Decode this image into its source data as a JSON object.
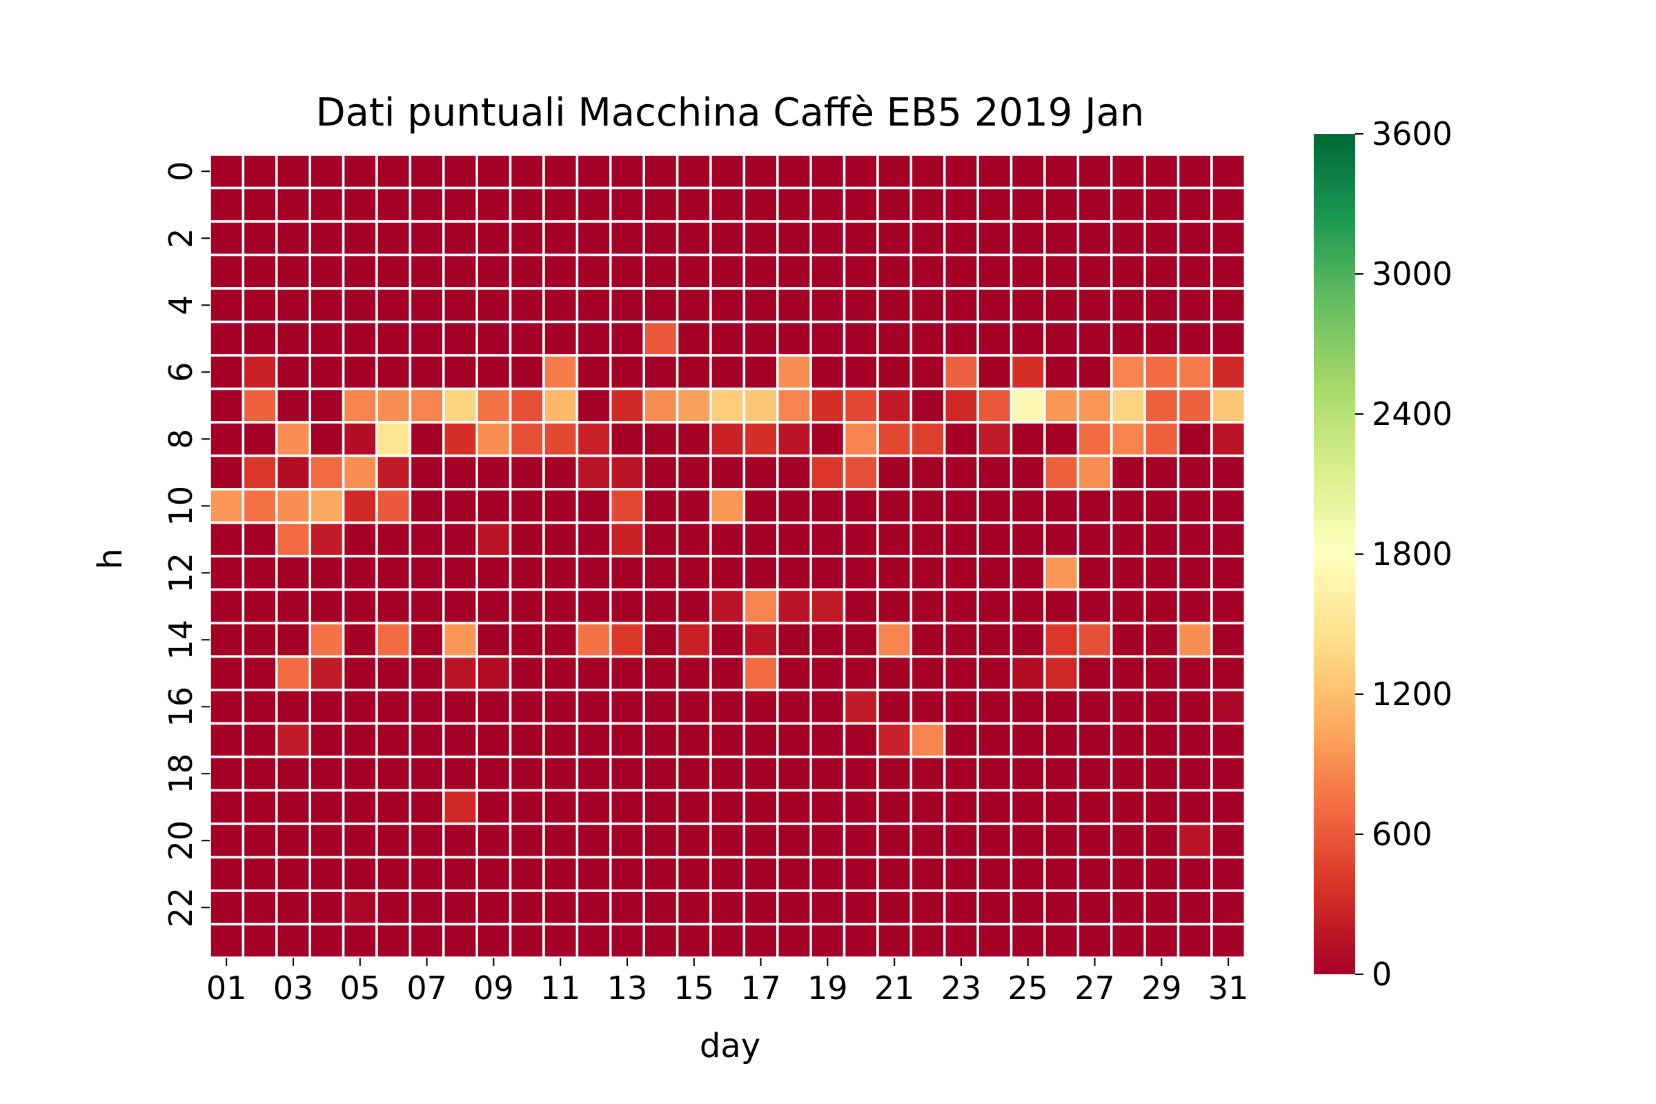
{
  "chart_data": {
    "type": "heatmap",
    "title": "Dati puntuali Macchina Caffè EB5 2019 Jan",
    "xlabel": "day",
    "ylabel": "h",
    "x_categories": [
      "01",
      "02",
      "03",
      "04",
      "05",
      "06",
      "07",
      "08",
      "09",
      "10",
      "11",
      "12",
      "13",
      "14",
      "15",
      "16",
      "17",
      "18",
      "19",
      "20",
      "21",
      "22",
      "23",
      "24",
      "25",
      "26",
      "27",
      "28",
      "29",
      "30",
      "31"
    ],
    "x_tick_labels": [
      "01",
      "03",
      "05",
      "07",
      "09",
      "11",
      "13",
      "15",
      "17",
      "19",
      "21",
      "23",
      "25",
      "27",
      "29",
      "31"
    ],
    "y_categories": [
      "0",
      "1",
      "2",
      "3",
      "4",
      "5",
      "6",
      "7",
      "8",
      "9",
      "10",
      "11",
      "12",
      "13",
      "14",
      "15",
      "16",
      "17",
      "18",
      "19",
      "20",
      "21",
      "22",
      "23"
    ],
    "y_tick_labels": [
      "0",
      "2",
      "4",
      "6",
      "8",
      "10",
      "12",
      "14",
      "16",
      "18",
      "20",
      "22"
    ],
    "colorbar": {
      "min": 0,
      "max": 3600,
      "ticks": [
        "0",
        "600",
        "1200",
        "1800",
        "2400",
        "3000",
        "3600"
      ],
      "colormap": "RdYlGn",
      "stops": [
        "#a50026",
        "#d73027",
        "#f46d43",
        "#fdae61",
        "#fee08b",
        "#ffffbf",
        "#d9ef8b",
        "#a6d96a",
        "#66bd63",
        "#1a9850",
        "#006837"
      ]
    },
    "values": [
      [
        0,
        0,
        0,
        0,
        0,
        0,
        0,
        0,
        0,
        0,
        0,
        0,
        0,
        0,
        0,
        0,
        0,
        0,
        0,
        0,
        0,
        0,
        0,
        0,
        0,
        0,
        0,
        0,
        0,
        0,
        0
      ],
      [
        0,
        0,
        0,
        0,
        0,
        0,
        0,
        0,
        0,
        0,
        0,
        0,
        0,
        0,
        0,
        0,
        0,
        0,
        0,
        0,
        0,
        0,
        0,
        0,
        0,
        0,
        0,
        0,
        0,
        0,
        0
      ],
      [
        0,
        0,
        0,
        0,
        0,
        0,
        0,
        0,
        0,
        0,
        0,
        0,
        0,
        0,
        0,
        0,
        0,
        0,
        0,
        0,
        0,
        0,
        0,
        0,
        0,
        0,
        0,
        0,
        0,
        0,
        0
      ],
      [
        0,
        0,
        0,
        0,
        0,
        0,
        0,
        0,
        0,
        0,
        0,
        0,
        0,
        0,
        0,
        0,
        0,
        0,
        0,
        0,
        0,
        0,
        0,
        0,
        0,
        0,
        0,
        0,
        0,
        0,
        0
      ],
      [
        0,
        0,
        0,
        0,
        0,
        0,
        0,
        0,
        0,
        0,
        0,
        0,
        0,
        0,
        0,
        0,
        0,
        0,
        0,
        0,
        0,
        0,
        0,
        0,
        0,
        0,
        0,
        0,
        0,
        0,
        0
      ],
      [
        0,
        0,
        0,
        0,
        0,
        0,
        0,
        0,
        0,
        0,
        0,
        0,
        0,
        600,
        0,
        0,
        0,
        0,
        0,
        0,
        0,
        0,
        0,
        0,
        0,
        0,
        0,
        0,
        0,
        0,
        0
      ],
      [
        0,
        250,
        0,
        0,
        0,
        0,
        0,
        0,
        0,
        0,
        800,
        0,
        0,
        0,
        0,
        0,
        0,
        900,
        0,
        0,
        0,
        0,
        650,
        0,
        350,
        0,
        0,
        850,
        700,
        800,
        300
      ],
      [
        0,
        650,
        0,
        0,
        850,
        900,
        850,
        1350,
        750,
        550,
        1150,
        0,
        300,
        900,
        1000,
        1300,
        1250,
        850,
        350,
        500,
        200,
        0,
        300,
        600,
        1700,
        950,
        950,
        1350,
        650,
        650,
        1250
      ],
      [
        0,
        0,
        900,
        0,
        100,
        1500,
        0,
        350,
        900,
        550,
        500,
        250,
        0,
        0,
        0,
        250,
        350,
        150,
        0,
        850,
        500,
        450,
        0,
        200,
        0,
        0,
        700,
        850,
        650,
        0,
        150
      ],
      [
        0,
        400,
        100,
        700,
        900,
        200,
        0,
        0,
        0,
        0,
        0,
        150,
        150,
        0,
        0,
        0,
        0,
        0,
        400,
        550,
        0,
        0,
        0,
        0,
        0,
        650,
        900,
        0,
        0,
        0,
        0
      ],
      [
        950,
        750,
        900,
        1050,
        300,
        600,
        0,
        0,
        0,
        0,
        0,
        0,
        500,
        0,
        0,
        950,
        0,
        0,
        0,
        0,
        0,
        0,
        0,
        0,
        0,
        0,
        0,
        0,
        0,
        0,
        0
      ],
      [
        0,
        0,
        700,
        200,
        0,
        0,
        0,
        0,
        150,
        0,
        0,
        0,
        250,
        0,
        0,
        0,
        0,
        0,
        0,
        0,
        0,
        0,
        0,
        0,
        0,
        0,
        0,
        0,
        0,
        0,
        0
      ],
      [
        0,
        0,
        0,
        0,
        0,
        0,
        0,
        0,
        0,
        0,
        0,
        0,
        0,
        0,
        0,
        0,
        0,
        0,
        0,
        0,
        0,
        0,
        0,
        0,
        0,
        950,
        0,
        0,
        0,
        0,
        0
      ],
      [
        0,
        0,
        0,
        0,
        0,
        0,
        0,
        0,
        0,
        0,
        0,
        0,
        0,
        0,
        0,
        150,
        850,
        150,
        200,
        0,
        0,
        0,
        0,
        0,
        0,
        0,
        0,
        0,
        0,
        0,
        0
      ],
      [
        0,
        0,
        0,
        750,
        0,
        700,
        0,
        950,
        0,
        0,
        0,
        750,
        400,
        0,
        250,
        0,
        150,
        0,
        0,
        0,
        850,
        0,
        0,
        0,
        0,
        400,
        550,
        0,
        0,
        900,
        0
      ],
      [
        0,
        0,
        700,
        200,
        0,
        0,
        0,
        150,
        100,
        0,
        0,
        0,
        0,
        0,
        0,
        0,
        700,
        0,
        0,
        0,
        0,
        0,
        0,
        0,
        100,
        300,
        0,
        0,
        0,
        0,
        0
      ],
      [
        0,
        0,
        0,
        0,
        0,
        0,
        0,
        0,
        0,
        0,
        0,
        0,
        0,
        0,
        0,
        0,
        0,
        0,
        0,
        200,
        0,
        0,
        0,
        0,
        0,
        0,
        0,
        0,
        0,
        0,
        50
      ],
      [
        0,
        0,
        200,
        0,
        0,
        0,
        0,
        0,
        0,
        0,
        0,
        0,
        0,
        0,
        0,
        0,
        0,
        0,
        0,
        0,
        250,
        850,
        0,
        0,
        0,
        0,
        0,
        0,
        0,
        0,
        0
      ],
      [
        0,
        0,
        0,
        0,
        0,
        0,
        0,
        0,
        0,
        0,
        0,
        0,
        0,
        0,
        0,
        0,
        0,
        0,
        0,
        0,
        0,
        0,
        0,
        0,
        0,
        0,
        0,
        0,
        0,
        0,
        0
      ],
      [
        0,
        0,
        0,
        0,
        0,
        0,
        0,
        300,
        0,
        0,
        0,
        0,
        0,
        0,
        0,
        0,
        0,
        0,
        0,
        0,
        0,
        0,
        0,
        0,
        0,
        0,
        0,
        0,
        0,
        0,
        0
      ],
      [
        0,
        0,
        0,
        0,
        0,
        0,
        0,
        0,
        0,
        0,
        0,
        0,
        0,
        0,
        0,
        0,
        0,
        0,
        0,
        0,
        0,
        0,
        0,
        0,
        0,
        0,
        0,
        0,
        0,
        150,
        0
      ],
      [
        0,
        0,
        0,
        0,
        0,
        0,
        0,
        0,
        0,
        0,
        0,
        0,
        0,
        0,
        0,
        0,
        0,
        0,
        0,
        0,
        0,
        0,
        0,
        0,
        0,
        0,
        0,
        0,
        0,
        0,
        0
      ],
      [
        0,
        0,
        0,
        0,
        50,
        0,
        0,
        0,
        0,
        0,
        0,
        0,
        0,
        0,
        0,
        0,
        0,
        0,
        0,
        0,
        0,
        0,
        0,
        0,
        0,
        0,
        0,
        0,
        0,
        0,
        0
      ],
      [
        0,
        0,
        0,
        0,
        0,
        0,
        0,
        0,
        0,
        0,
        0,
        0,
        0,
        0,
        0,
        0,
        0,
        0,
        0,
        0,
        0,
        0,
        0,
        0,
        0,
        0,
        0,
        0,
        0,
        0,
        0
      ]
    ]
  }
}
